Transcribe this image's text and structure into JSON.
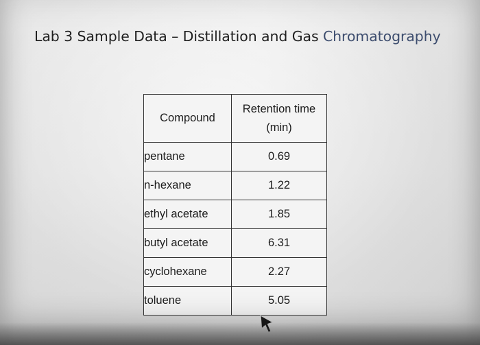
{
  "slide": {
    "title_main": "Lab 3 Sample Data – Distillation and Gas ",
    "title_accent": "Chromatography"
  },
  "table": {
    "headers": {
      "compound": "Compound",
      "retention_line1": "Retention time",
      "retention_line2": "(min)"
    },
    "rows": [
      {
        "compound": "pentane",
        "retention_time": "0.69"
      },
      {
        "compound": "n-hexane",
        "retention_time": "1.22"
      },
      {
        "compound": "ethyl acetate",
        "retention_time": "1.85"
      },
      {
        "compound": "butyl acetate",
        "retention_time": "6.31"
      },
      {
        "compound": "cyclohexane",
        "retention_time": "2.27"
      },
      {
        "compound": "toluene",
        "retention_time": "5.05"
      }
    ]
  },
  "colors": {
    "title_text": "#1f1f1f",
    "title_accent": "#3d4d6e",
    "table_border": "#333333",
    "table_bg": "#f4f4f4"
  },
  "icons": {
    "cursor": "mouse-pointer-arrow-icon"
  }
}
